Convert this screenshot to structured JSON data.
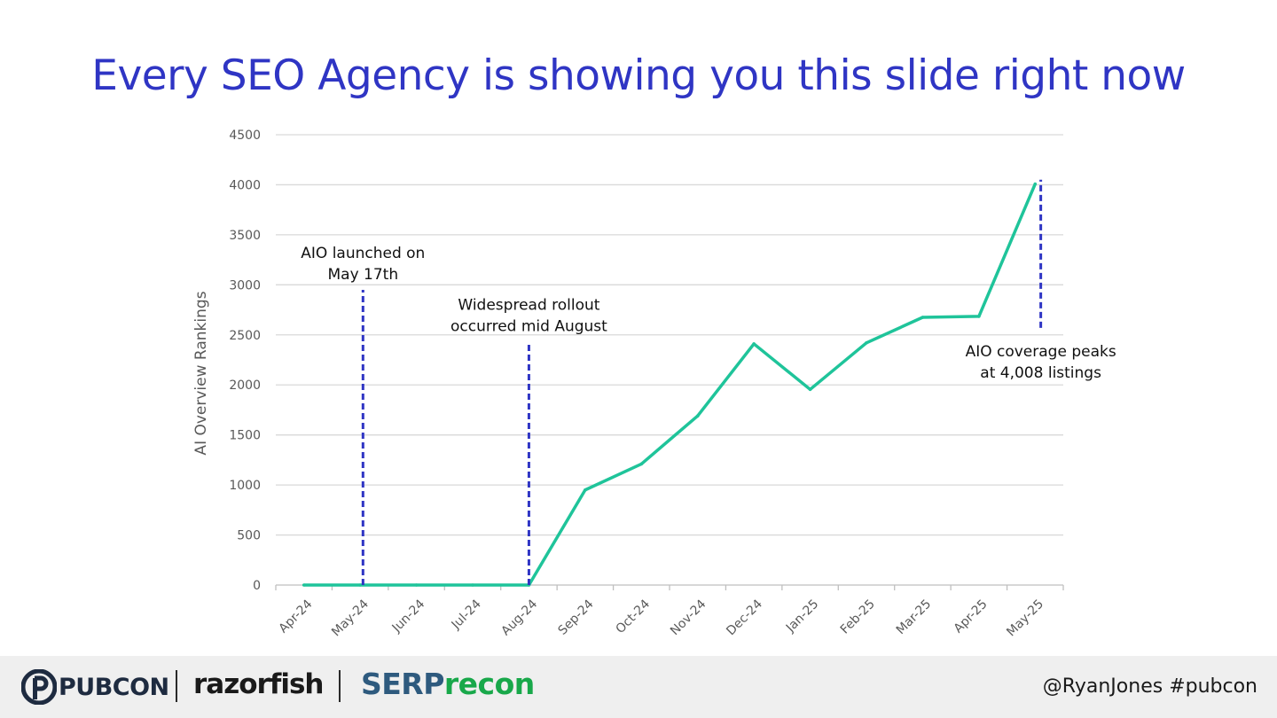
{
  "slide": {
    "title": "Every SEO Agency is showing you this slide right now"
  },
  "chart_data": {
    "type": "line",
    "title": "",
    "xlabel": "",
    "ylabel": "AI Overview Rankings",
    "categories": [
      "Apr-24",
      "May-24",
      "Jun-24",
      "Jul-24",
      "Aug-24",
      "Sep-24",
      "Oct-24",
      "Nov-24",
      "Dec-24",
      "Jan-25",
      "Feb-25",
      "Mar-25",
      "Apr-25",
      "May-25"
    ],
    "series": [
      {
        "values": [
          0,
          0,
          0,
          0,
          0,
          950,
          1210,
          1690,
          2410,
          1955,
          2420,
          2675,
          2685,
          4008
        ],
        "color": "#1fc49a"
      }
    ],
    "ylim": [
      0,
      4500
    ],
    "yticks": [
      0,
      500,
      1000,
      1500,
      2000,
      2500,
      3000,
      3500,
      4000,
      4500
    ],
    "grid": true,
    "legend": "none",
    "annotations": [
      {
        "lines": [
          "AIO launched on",
          "May 17th"
        ],
        "x": "May-24",
        "offset": 0.05,
        "y_from": 0,
        "y_to": 2950
      },
      {
        "lines": [
          "Widespread rollout",
          "occurred mid August"
        ],
        "x": "Aug-24",
        "offset": 0.0,
        "y_from": 0,
        "y_to": 2430
      },
      {
        "lines": [
          "AIO coverage peaks",
          "at  4,008 listings"
        ],
        "x": "May-25",
        "offset": 0.1,
        "y_from": 2570,
        "y_to": 4050
      }
    ],
    "annotation_color": "#2f35c4"
  },
  "footer": {
    "logos": {
      "pubcon": "PUBCON",
      "razorfish": "razorfish",
      "serp_a": "SERP",
      "serp_b": "recon"
    },
    "handle": "@RyanJones  #pubcon"
  }
}
